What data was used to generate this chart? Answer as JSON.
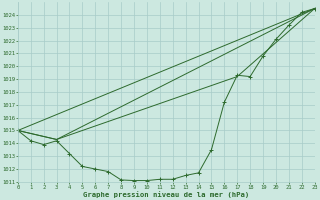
{
  "background_color": "#cce8e0",
  "grid_color": "#a8ccc8",
  "line_color": "#2d6a2d",
  "title": "Graphe pression niveau de la mer (hPa)",
  "ylim": [
    1011,
    1025
  ],
  "xlim": [
    0,
    23
  ],
  "yticks": [
    1011,
    1012,
    1013,
    1014,
    1015,
    1016,
    1017,
    1018,
    1019,
    1020,
    1021,
    1022,
    1023,
    1024
  ],
  "xticks": [
    0,
    1,
    2,
    3,
    4,
    5,
    6,
    7,
    8,
    9,
    10,
    11,
    12,
    13,
    14,
    15,
    16,
    17,
    18,
    19,
    20,
    21,
    22,
    23
  ],
  "series_main_x": [
    0,
    1,
    2,
    3,
    4,
    5,
    6,
    7,
    8,
    9,
    10,
    11,
    12,
    13,
    14,
    15,
    16,
    17,
    18,
    19,
    20,
    21,
    22,
    23
  ],
  "series_main_y": [
    1015.0,
    1014.2,
    1013.9,
    1014.2,
    1013.2,
    1012.2,
    1012.0,
    1011.8,
    1011.15,
    1011.1,
    1011.1,
    1011.2,
    1011.2,
    1011.5,
    1011.7,
    1013.5,
    1017.2,
    1019.3,
    1019.2,
    1020.8,
    1022.1,
    1023.2,
    1024.2,
    1024.5
  ],
  "line1_x": [
    0,
    23
  ],
  "line1_y": [
    1015.0,
    1024.5
  ],
  "line2_x": [
    0,
    3,
    23
  ],
  "line2_y": [
    1015.0,
    1014.3,
    1024.5
  ],
  "line3_x": [
    0,
    3,
    17,
    23
  ],
  "line3_y": [
    1015.0,
    1014.3,
    1019.2,
    1024.5
  ]
}
